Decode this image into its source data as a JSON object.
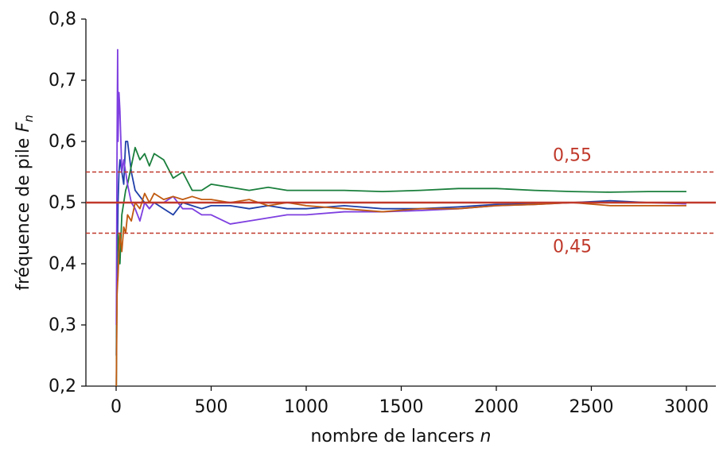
{
  "chart_data": {
    "type": "line",
    "x_label": {
      "text": "nombre de lancers",
      "variable": "n"
    },
    "y_label": {
      "text": "fréquence de pile",
      "variable": "F",
      "subscript": "n"
    },
    "x": [
      1,
      5,
      8,
      10,
      15,
      20,
      30,
      40,
      50,
      60,
      80,
      100,
      125,
      150,
      175,
      200,
      250,
      300,
      350,
      400,
      450,
      500,
      600,
      700,
      800,
      900,
      1000,
      1200,
      1400,
      1600,
      1800,
      2000,
      2200,
      2400,
      2600,
      2800,
      3000
    ],
    "series": [
      {
        "color": "#1f3fa8",
        "values": [
          0.25,
          0.4,
          0.45,
          0.5,
          0.55,
          0.57,
          0.55,
          0.53,
          0.6,
          0.6,
          0.55,
          0.52,
          0.51,
          0.5,
          0.49,
          0.5,
          0.49,
          0.48,
          0.5,
          0.495,
          0.49,
          0.495,
          0.495,
          0.49,
          0.495,
          0.49,
          0.49,
          0.495,
          0.49,
          0.49,
          0.493,
          0.497,
          0.498,
          0.5,
          0.503,
          0.5,
          0.5
        ]
      },
      {
        "color": "#1a7f3c",
        "values": [
          0.2,
          0.4,
          0.43,
          0.45,
          0.42,
          0.4,
          0.48,
          0.5,
          0.52,
          0.53,
          0.56,
          0.59,
          0.57,
          0.58,
          0.56,
          0.58,
          0.57,
          0.54,
          0.55,
          0.52,
          0.52,
          0.53,
          0.525,
          0.52,
          0.525,
          0.52,
          0.52,
          0.52,
          0.518,
          0.52,
          0.523,
          0.523,
          0.52,
          0.518,
          0.517,
          0.518,
          0.518
        ]
      },
      {
        "color": "#7e3fe0",
        "values": [
          0.3,
          0.6,
          0.75,
          0.6,
          0.68,
          0.65,
          0.55,
          0.57,
          0.55,
          0.53,
          0.5,
          0.49,
          0.47,
          0.5,
          0.49,
          0.5,
          0.5,
          0.51,
          0.49,
          0.49,
          0.48,
          0.48,
          0.465,
          0.47,
          0.475,
          0.48,
          0.48,
          0.485,
          0.485,
          0.487,
          0.49,
          0.495,
          0.497,
          0.5,
          0.5,
          0.5,
          0.498
        ]
      },
      {
        "color": "#c05a10",
        "values": [
          0.2,
          0.35,
          0.37,
          0.38,
          0.42,
          0.45,
          0.42,
          0.46,
          0.45,
          0.48,
          0.47,
          0.5,
          0.49,
          0.515,
          0.5,
          0.515,
          0.505,
          0.51,
          0.505,
          0.51,
          0.505,
          0.505,
          0.5,
          0.505,
          0.495,
          0.5,
          0.495,
          0.49,
          0.485,
          0.49,
          0.49,
          0.495,
          0.497,
          0.5,
          0.495,
          0.495,
          0.495
        ]
      }
    ],
    "hlines": [
      {
        "value": 0.5,
        "style": "solid",
        "color": "#c0392b"
      },
      {
        "value": 0.55,
        "style": "dashed",
        "color": "#c0392b",
        "label": "0,55"
      },
      {
        "value": 0.45,
        "style": "dashed",
        "color": "#c0392b",
        "label": "0,45"
      }
    ],
    "xlim": [
      -159,
      3155
    ],
    "ylim": [
      0.2,
      0.8
    ],
    "xticks": [
      0,
      500,
      1000,
      1500,
      2000,
      2500,
      3000
    ],
    "yticks": [
      {
        "value": 0.2,
        "label": "0,2"
      },
      {
        "value": 0.3,
        "label": "0,3"
      },
      {
        "value": 0.4,
        "label": "0,4"
      },
      {
        "value": 0.5,
        "label": "0,5"
      },
      {
        "value": 0.6,
        "label": "0,6"
      },
      {
        "value": 0.7,
        "label": "0,7"
      },
      {
        "value": 0.8,
        "label": "0,8"
      }
    ]
  }
}
